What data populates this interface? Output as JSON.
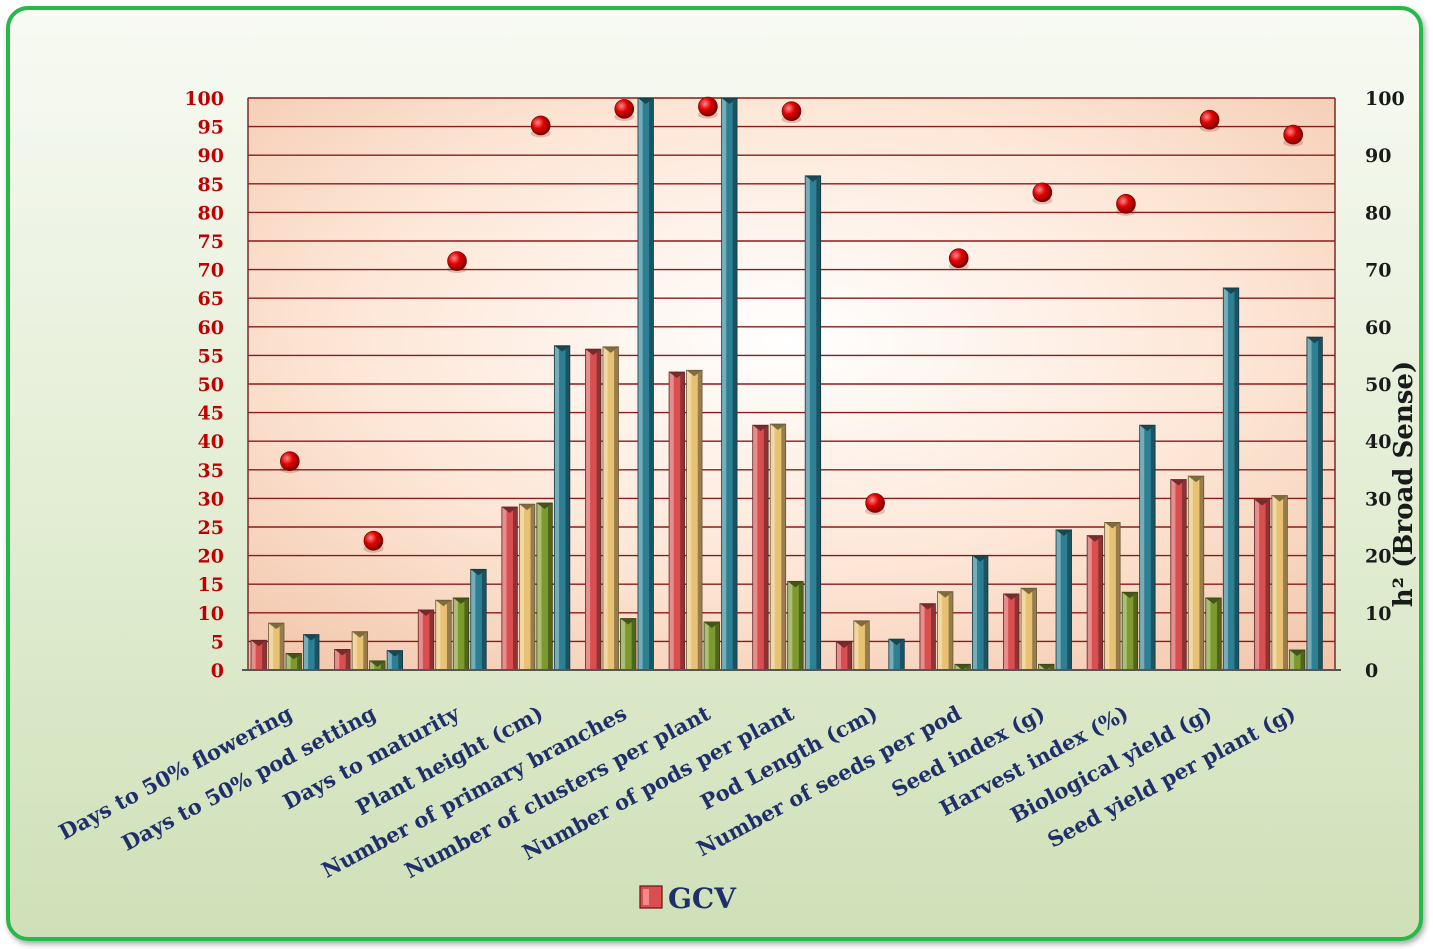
{
  "chart_data": {
    "type": "bar",
    "title": "",
    "categories": [
      "Days to 50% flowering",
      "Days to 50% pod setting",
      "Days to maturity",
      "Plant height (cm)",
      "Number of primary branches",
      "Number of clusters per plant",
      "Number of pods per plant",
      "Pod Length (cm)",
      "Number of seeds per pod",
      "Seed index (g)",
      "Harvest index (%)",
      "Biological yield (g)",
      "Seed yield per plant (g)"
    ],
    "series": [
      {
        "name": "GCV",
        "kind": "bar",
        "color": "#d94f4f",
        "values": [
          5.2,
          3.6,
          10.5,
          28.5,
          56.1,
          52.1,
          42.8,
          4.9,
          11.6,
          13.3,
          23.5,
          33.3,
          29.8
        ]
      },
      {
        "kind": "bar",
        "color": "#e8c173",
        "values": [
          8.2,
          6.7,
          12.2,
          29.0,
          56.5,
          52.4,
          43.0,
          8.6,
          13.7,
          14.3,
          25.8,
          33.9,
          30.5
        ]
      },
      {
        "kind": "bar",
        "color": "#7d9a2e",
        "values": [
          2.9,
          1.6,
          12.6,
          29.2,
          9.0,
          8.4,
          15.5,
          0.0,
          1.0,
          1.0,
          13.6,
          12.6,
          3.5
        ]
      },
      {
        "kind": "bar",
        "color": "#2d7f94",
        "values": [
          6.2,
          3.4,
          17.6,
          56.7,
          100.0,
          100.0,
          86.4,
          5.4,
          20.0,
          24.5,
          42.8,
          66.8,
          58.2
        ]
      },
      {
        "kind": "scatter",
        "color": "#d40000",
        "axis": "right",
        "values": [
          36.5,
          22.6,
          71.5,
          95.2,
          98.1,
          98.5,
          97.7,
          29.2,
          72.0,
          83.5,
          81.5,
          96.2,
          93.6
        ]
      }
    ],
    "yticks_left": [
      "0",
      "5",
      "10",
      "15",
      "20",
      "25",
      "30",
      "35",
      "40",
      "45",
      "50",
      "55",
      "60",
      "65",
      "70",
      "75",
      "80",
      "85",
      "90",
      "95",
      "100"
    ],
    "yticks_right": [
      "0",
      "10",
      "20",
      "30",
      "40",
      "50",
      "60",
      "70",
      "80",
      "90",
      "100"
    ],
    "ylim": [
      0,
      100
    ],
    "ylim_right": [
      0,
      100
    ],
    "ylabel": "",
    "ylabel_right": "h² (Broad Sense)",
    "grid": true,
    "legend": {
      "position": "bottom",
      "entries": [
        "GCV"
      ]
    }
  }
}
